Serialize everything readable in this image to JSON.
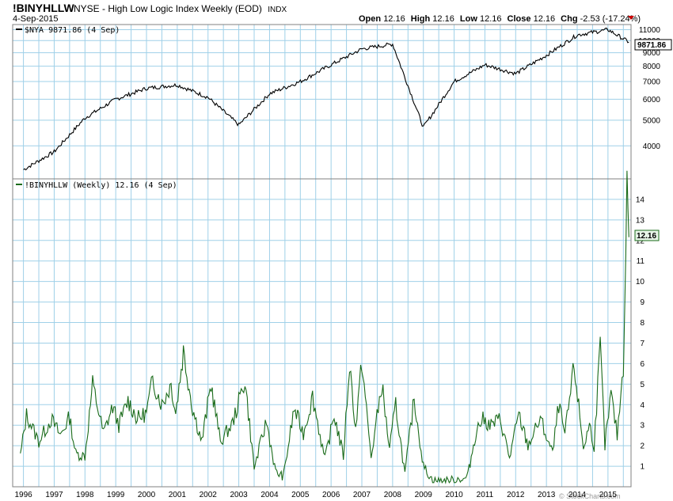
{
  "header": {
    "symbol": "!BINYHLLW",
    "description": "NYSE - High Low Logic Index Weekly (EOD)",
    "exchange": "INDX",
    "date": "4-Sep-2015",
    "open_label": "Open",
    "open": "12.16",
    "high_label": "High",
    "high": "12.16",
    "low_label": "Low",
    "low": "12.16",
    "close_label": "Close",
    "close": "12.16",
    "chg_label": "Chg",
    "chg": "-2.53 (-17.24%)",
    "watermark": "© StockCharts.com"
  },
  "colors": {
    "grid": "#9fd0e8",
    "top_line": "#000000",
    "bottom_line": "#1a6b1a",
    "chg_marker": "#cc0000",
    "frame": "#808080"
  },
  "chart_data": [
    {
      "type": "line",
      "name": "top-panel",
      "series": [
        {
          "name": "$NYA",
          "legend": "$NYA 9871.86 (4 Sep)"
        }
      ],
      "x": [
        1996,
        1997,
        1998,
        1999,
        2000,
        2001,
        2002,
        2003,
        2004,
        2005,
        2006,
        2007,
        2008,
        2009,
        2010,
        2011,
        2012,
        2013,
        2014,
        2015,
        2015.68
      ],
      "values": [
        3250,
        3800,
        5100,
        6000,
        6600,
        6800,
        6100,
        4800,
        6300,
        7000,
        8100,
        9300,
        9700,
        4700,
        7000,
        8100,
        7500,
        8800,
        10500,
        11000,
        9871.86
      ],
      "last_value": "9871.86",
      "y_scale": "log",
      "ylim": [
        3000,
        11500
      ],
      "y_ticks": [
        "4000",
        "5000",
        "6000",
        "7000",
        "8000",
        "9000",
        "10000",
        "11000"
      ]
    },
    {
      "type": "line",
      "name": "bottom-panel",
      "series": [
        {
          "name": "!BINYHLLW",
          "legend": "!BINYHLLW (Weekly) 12.16 (4 Sep)"
        }
      ],
      "x": [
        1995.9,
        1996.1,
        1996.5,
        1996.9,
        1997.2,
        1997.5,
        1997.7,
        1998.0,
        1998.25,
        1998.6,
        1998.9,
        1999.1,
        1999.4,
        1999.7,
        2000.0,
        2000.2,
        2000.5,
        2000.8,
        2000.95,
        2001.2,
        2001.5,
        2001.8,
        2002.1,
        2002.4,
        2002.8,
        2003.2,
        2003.5,
        2003.9,
        2004.2,
        2004.45,
        2004.8,
        2005.1,
        2005.4,
        2005.8,
        2006.1,
        2006.4,
        2006.6,
        2006.8,
        2007.0,
        2007.3,
        2007.65,
        2007.9,
        2008.1,
        2008.4,
        2008.7,
        2009.0,
        2009.3,
        2009.8,
        2010.2,
        2010.3,
        2010.45,
        2010.7,
        2010.9,
        2011.2,
        2011.5,
        2011.8,
        2012.1,
        2012.4,
        2012.8,
        2013.2,
        2013.4,
        2013.6,
        2013.9,
        2014.2,
        2014.4,
        2014.55,
        2014.75,
        2014.9,
        2015.1,
        2015.3,
        2015.5,
        2015.62,
        2015.68
      ],
      "values": [
        1.5,
        3.5,
        2.2,
        3.3,
        2.5,
        3.4,
        1.6,
        1.5,
        5.0,
        2.6,
        3.9,
        3.0,
        4.2,
        3.3,
        3.6,
        5.2,
        4.0,
        5.0,
        3.6,
        6.6,
        3.8,
        2.2,
        5.0,
        2.2,
        3.1,
        5.2,
        0.9,
        3.2,
        0.7,
        0.5,
        3.8,
        2.6,
        4.4,
        1.3,
        3.5,
        1.5,
        6.0,
        2.8,
        6.1,
        1.4,
        5.0,
        1.8,
        4.0,
        0.6,
        4.3,
        1.0,
        0.3,
        0.3,
        0.4,
        0.3,
        0.6,
        2.6,
        3.3,
        3.0,
        3.3,
        1.4,
        3.5,
        2.0,
        3.3,
        1.6,
        4.0,
        2.5,
        5.9,
        1.9,
        3.0,
        2.0,
        6.9,
        2.0,
        4.5,
        2.5,
        5.9,
        14.7,
        12.16
      ],
      "last_value": "12.16",
      "ylim": [
        0,
        15
      ],
      "y_ticks": [
        "1",
        "2",
        "3",
        "4",
        "5",
        "6",
        "7",
        "8",
        "9",
        "10",
        "11",
        "12",
        "13",
        "14"
      ]
    }
  ],
  "x_axis_labels": [
    "1996",
    "1997",
    "1998",
    "1999",
    "2000",
    "2001",
    "2002",
    "2003",
    "2004",
    "2005",
    "2006",
    "2007",
    "2008",
    "2009",
    "2010",
    "2011",
    "2012",
    "2013",
    "2014",
    "2015"
  ]
}
